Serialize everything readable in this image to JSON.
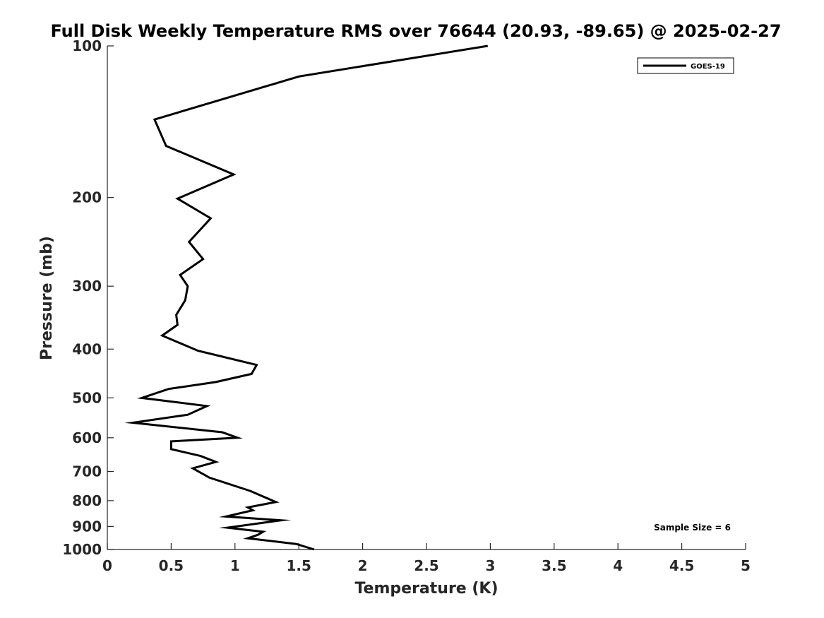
{
  "chart_data": {
    "type": "line",
    "title": "Full Disk Weekly Temperature RMS over 76644 (20.93, -89.65) @ 2025-02-27",
    "xlabel": "Temperature (K)",
    "ylabel": "Pressure (mb)",
    "xlim": [
      0,
      5
    ],
    "ylim": [
      1000,
      100
    ],
    "y_scale": "log",
    "y_reversed": true,
    "x_ticks": [
      0,
      0.5,
      1,
      1.5,
      2,
      2.5,
      3,
      3.5,
      4,
      4.5,
      5
    ],
    "x_tick_labels": [
      "0",
      "0.5",
      "1",
      "1.5",
      "2",
      "2.5",
      "3",
      "3.5",
      "4",
      "4.5",
      "5"
    ],
    "y_ticks": [
      100,
      200,
      300,
      400,
      500,
      600,
      700,
      800,
      900,
      1000
    ],
    "y_tick_labels": [
      "100",
      "200",
      "300",
      "400",
      "500",
      "600",
      "700",
      "800",
      "900",
      "1000"
    ],
    "grid": false,
    "legend_position": "top-right",
    "series": [
      {
        "name": "GOES-19",
        "color": "#000000",
        "x": [
          2.98,
          1.5,
          0.37,
          0.46,
          0.99,
          0.55,
          0.81,
          0.64,
          0.75,
          0.57,
          0.63,
          0.61,
          0.54,
          0.55,
          0.43,
          0.71,
          1.17,
          1.13,
          0.85,
          0.48,
          0.27,
          0.78,
          0.63,
          0.2,
          0.9,
          1.02,
          0.5,
          0.5,
          0.73,
          0.85,
          0.67,
          0.8,
          1.12,
          1.22,
          1.32,
          1.1,
          1.14,
          0.93,
          1.36,
          0.94,
          1.22,
          1.18,
          1.1,
          1.48,
          1.62
        ],
        "y": [
          100,
          115,
          140,
          158,
          180,
          201,
          220,
          245,
          265,
          285,
          300,
          320,
          342,
          358,
          376,
          403,
          430,
          448,
          465,
          480,
          500,
          519,
          540,
          560,
          585,
          600,
          610,
          632,
          652,
          670,
          690,
          720,
          765,
          785,
          805,
          825,
          836,
          860,
          875,
          905,
          922,
          935,
          950,
          975,
          1000
        ]
      }
    ],
    "annotations": [
      "Sample Size = 6"
    ]
  }
}
